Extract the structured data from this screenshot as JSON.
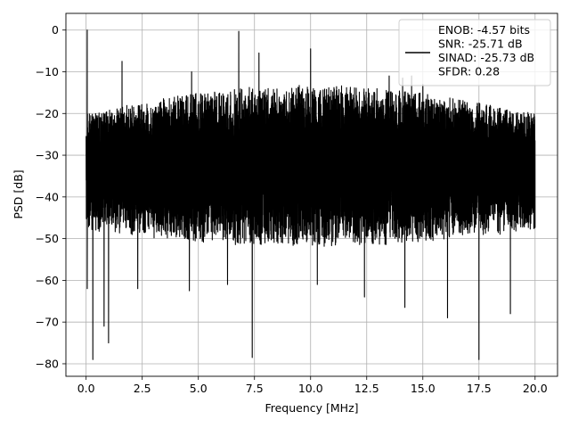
{
  "chart_data": {
    "type": "line",
    "xlabel": "Frequency [MHz]",
    "ylabel": "PSD [dB]",
    "xlim": [
      -0.9,
      21.0
    ],
    "ylim": [
      -83,
      4
    ],
    "x_ticks": [
      0.0,
      2.5,
      5.0,
      7.5,
      10.0,
      12.5,
      15.0,
      17.5,
      20.0
    ],
    "x_tick_labels": [
      "0.0",
      "2.5",
      "5.0",
      "7.5",
      "10.0",
      "12.5",
      "15.0",
      "17.5",
      "20.0"
    ],
    "y_ticks": [
      0,
      -10,
      -20,
      -30,
      -40,
      -50,
      -60,
      -70,
      -80
    ],
    "y_tick_labels": [
      "0",
      "−10",
      "−20",
      "−30",
      "−40",
      "−50",
      "−60",
      "−70",
      "−80"
    ],
    "grid": true,
    "legend_position": "top-right",
    "series": [
      {
        "name": "ENOB: -4.57 bits\nSNR: -25.71 dB\nSINAD: -25.73 dB\nSFDR: 0.28",
        "color": "#000000",
        "x_range": [
          0.0,
          20.0
        ],
        "noise_floor": {
          "upper_envelope": [
            -20,
            -13
          ],
          "lower_envelope": [
            -48,
            -52
          ],
          "mean": -32
        },
        "peaks": [
          {
            "x": 0.05,
            "y": 0
          },
          {
            "x": 1.6,
            "y": -7.5
          },
          {
            "x": 4.7,
            "y": -10
          },
          {
            "x": 6.8,
            "y": -0.3
          },
          {
            "x": 7.7,
            "y": -5.5
          },
          {
            "x": 10.0,
            "y": -4.5
          },
          {
            "x": 13.5,
            "y": -11
          },
          {
            "x": 14.1,
            "y": -11.5
          },
          {
            "x": 14.5,
            "y": -11
          },
          {
            "x": 15.0,
            "y": -13
          }
        ],
        "dips": [
          {
            "x": 0.05,
            "y": -62
          },
          {
            "x": 0.3,
            "y": -79
          },
          {
            "x": 0.8,
            "y": -71
          },
          {
            "x": 1.0,
            "y": -75
          },
          {
            "x": 2.3,
            "y": -62
          },
          {
            "x": 4.6,
            "y": -62.5
          },
          {
            "x": 6.3,
            "y": -61
          },
          {
            "x": 7.4,
            "y": -78.5
          },
          {
            "x": 10.3,
            "y": -61
          },
          {
            "x": 12.4,
            "y": -64
          },
          {
            "x": 14.2,
            "y": -66.5
          },
          {
            "x": 16.1,
            "y": -69
          },
          {
            "x": 17.5,
            "y": -79
          },
          {
            "x": 18.9,
            "y": -68
          }
        ]
      }
    ]
  }
}
